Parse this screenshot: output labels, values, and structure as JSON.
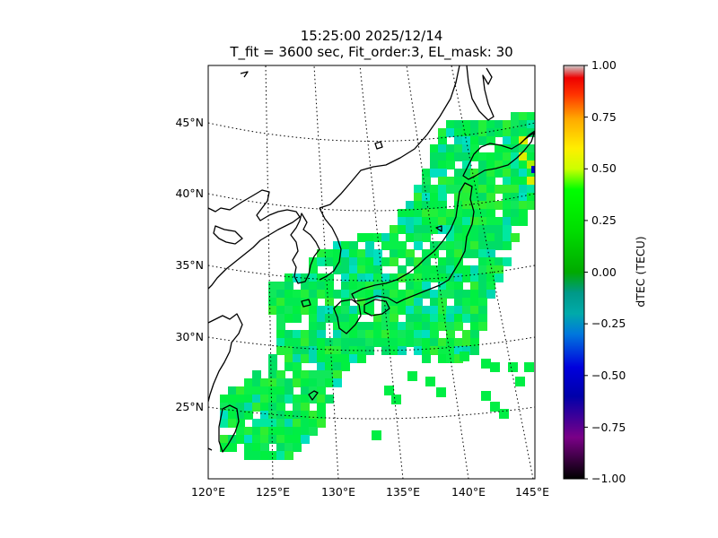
{
  "title": {
    "line1": "15:25:00 2025/12/14",
    "line2": "T_fit = 3600 sec, Fit_order:3, EL_mask: 30"
  },
  "map": {
    "lon_range": [
      120,
      145
    ],
    "lat_range": [
      20,
      49
    ],
    "lon_ticks": [
      "120°E",
      "125°E",
      "130°E",
      "135°E",
      "140°E",
      "145°E"
    ],
    "lat_ticks": [
      "25°N",
      "30°N",
      "35°N",
      "40°N",
      "45°N"
    ],
    "gridlines": "dotted",
    "coastline_color": "#000000"
  },
  "colorbar": {
    "label": "dTEC (TECU)",
    "range": [
      -1.0,
      1.0
    ],
    "ticks": [
      "1.00",
      "0.75",
      "0.50",
      "0.25",
      "0.00",
      "−0.25",
      "−0.50",
      "−0.75",
      "−1.00"
    ],
    "colormap": "nipy_spectral"
  },
  "data_coverage": {
    "description_values": "dTEC mostly near 0.00 to +0.25 (green), some cyan near −0.1, isolated warmer spots near +0.5 around 43°N 144°E",
    "dominant_color": "#00ee44"
  }
}
